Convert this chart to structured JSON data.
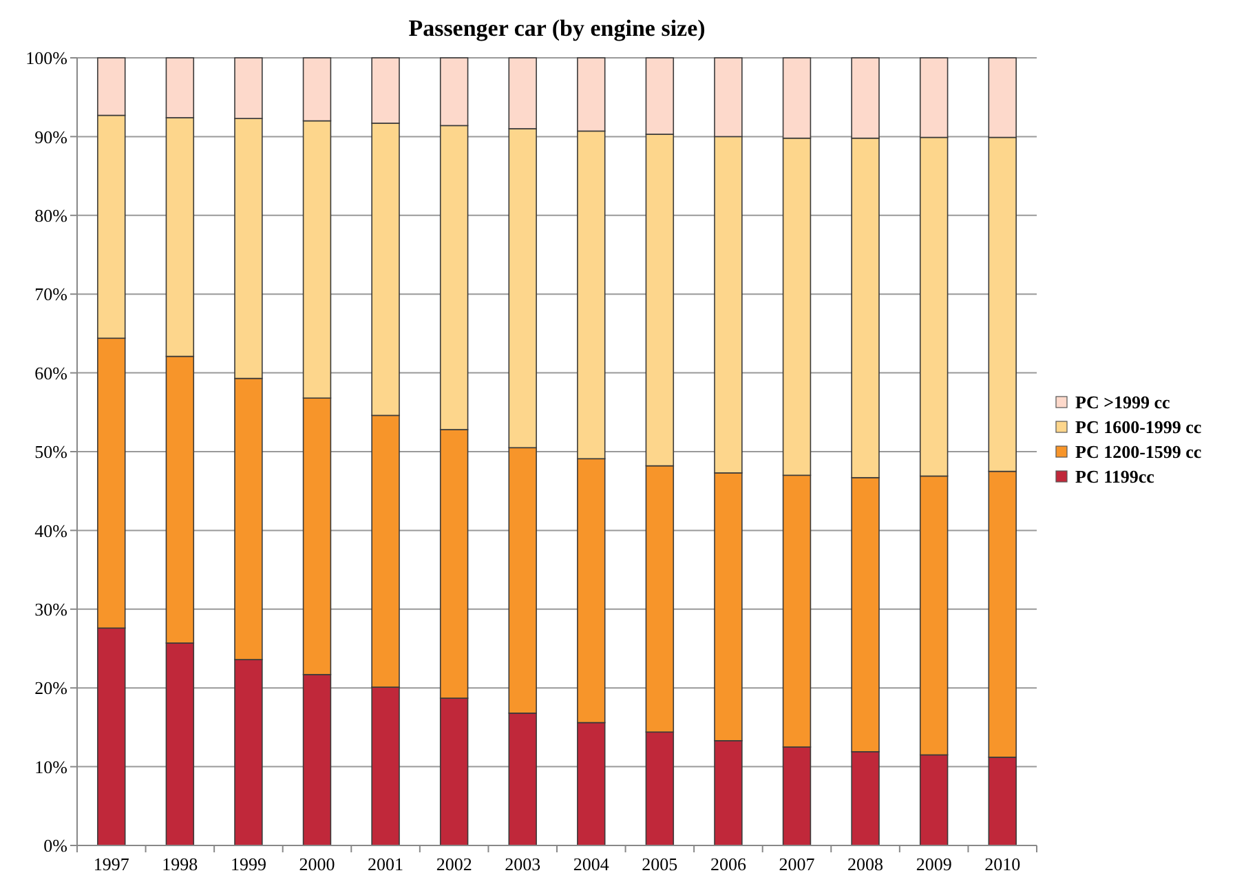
{
  "chart_data": {
    "type": "bar",
    "title": "Passenger car (by engine size)",
    "stacked": true,
    "categories": [
      "1997",
      "1998",
      "1999",
      "2000",
      "2001",
      "2002",
      "2003",
      "2004",
      "2005",
      "2006",
      "2007",
      "2008",
      "2009",
      "2010"
    ],
    "series": [
      {
        "name": "PC 1199cc",
        "color": "#c0283a",
        "values": [
          27.6,
          25.7,
          23.6,
          21.7,
          20.1,
          18.7,
          16.8,
          15.6,
          14.4,
          13.3,
          12.5,
          11.9,
          11.5,
          11.2
        ]
      },
      {
        "name": "PC 1200-1599 cc",
        "color": "#f7952a",
        "values": [
          36.8,
          36.4,
          35.7,
          35.1,
          34.5,
          34.1,
          33.7,
          33.5,
          33.8,
          34.0,
          34.5,
          34.8,
          35.4,
          36.3
        ]
      },
      {
        "name": "PC 1600-1999 cc",
        "color": "#fdd68c",
        "values": [
          28.3,
          30.3,
          33.0,
          35.2,
          37.1,
          38.6,
          40.5,
          41.6,
          42.1,
          42.7,
          42.8,
          43.1,
          43.0,
          42.4
        ]
      },
      {
        "name": "PC >1999 cc",
        "color": "#fdd9cb",
        "values": [
          7.3,
          7.6,
          7.7,
          8.0,
          8.3,
          8.6,
          9.0,
          9.3,
          9.7,
          10.0,
          10.2,
          10.2,
          10.1,
          10.1
        ]
      }
    ],
    "ylim": [
      0,
      100
    ],
    "yticks": [
      {
        "value": 0,
        "label": "0%"
      },
      {
        "value": 10,
        "label": "10%"
      },
      {
        "value": 20,
        "label": "20%"
      },
      {
        "value": 30,
        "label": "30%"
      },
      {
        "value": 40,
        "label": "40%"
      },
      {
        "value": 50,
        "label": "50%"
      },
      {
        "value": 60,
        "label": "60%"
      },
      {
        "value": 70,
        "label": "70%"
      },
      {
        "value": 80,
        "label": "80%"
      },
      {
        "value": 90,
        "label": "90%"
      },
      {
        "value": 100,
        "label": "100%"
      }
    ],
    "grid": "y",
    "legend": "right"
  }
}
